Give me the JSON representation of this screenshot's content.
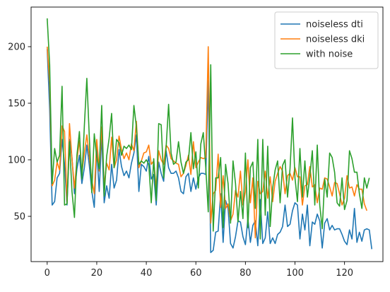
{
  "chart_data": {
    "type": "line",
    "title": "",
    "xlabel": "",
    "ylabel": "",
    "xlim": [
      -6.5,
      135.5
    ],
    "ylim": [
      10,
      235
    ],
    "x_ticks": [
      0,
      20,
      40,
      60,
      80,
      100,
      120
    ],
    "y_ticks": [
      50,
      100,
      150,
      200
    ],
    "grid": false,
    "legend_position": "top-right",
    "series": [
      {
        "name": "noiseless dti",
        "color": "#1f77b4",
        "values": [
          198,
          145,
          60,
          63,
          84,
          88,
          118,
          96,
          60,
          118,
          102,
          70,
          92,
          104,
          79,
          93,
          113,
          95,
          72,
          58,
          110,
          72,
          122,
          62,
          77,
          66,
          96,
          75,
          82,
          109,
          94,
          86,
          90,
          84,
          97,
          106,
          122,
          72,
          96,
          94,
          90,
          103,
          83,
          87,
          60,
          98,
          88,
          81,
          108,
          93,
          88,
          88,
          90,
          84,
          72,
          70,
          85,
          88,
          72,
          84,
          74,
          84,
          88,
          88,
          87,
          170,
          18,
          20,
          36,
          37,
          70,
          27,
          64,
          57,
          26,
          22,
          32,
          46,
          45,
          32,
          25,
          48,
          27,
          42,
          46,
          24,
          65,
          26,
          31,
          54,
          26,
          31,
          26,
          34,
          36,
          41,
          60,
          41,
          43,
          55,
          62,
          60,
          30,
          52,
          38,
          60,
          24,
          45,
          43,
          52,
          46,
          22,
          44,
          48,
          38,
          42,
          38,
          39,
          39,
          34,
          28,
          25,
          38,
          30,
          57,
          27,
          36,
          28,
          38,
          39,
          38,
          21
        ]
      },
      {
        "name": "noiseless dki",
        "color": "#ff7f0e",
        "values": [
          200,
          168,
          77,
          82,
          98,
          91,
          130,
          125,
          62,
          132,
          101,
          75,
          100,
          117,
          88,
          106,
          122,
          103,
          82,
          70,
          118,
          90,
          129,
          77,
          97,
          91,
          120,
          93,
          100,
          121,
          109,
          101,
          106,
          100,
          114,
          108,
          134,
          93,
          99,
          106,
          107,
          113,
          96,
          99,
          75,
          108,
          100,
          96,
          113,
          110,
          101,
          99,
          97,
          96,
          85,
          88,
          95,
          104,
          87,
          116,
          93,
          98,
          102,
          101,
          102,
          200,
          44,
          70,
          73,
          105,
          58,
          86,
          57,
          61,
          46,
          52,
          73,
          67,
          90,
          60,
          72,
          100,
          62,
          84,
          31,
          81,
          70,
          72,
          90,
          66,
          85,
          63,
          81,
          88,
          94,
          90,
          70,
          86,
          88,
          82,
          93,
          85,
          85,
          60,
          77,
          78,
          94,
          76,
          78,
          62,
          75,
          74,
          84,
          83,
          76,
          68,
          80,
          79,
          70,
          60,
          66,
          86,
          75,
          76,
          68,
          78,
          74,
          74,
          61,
          55
        ]
      },
      {
        "name": "with noise",
        "color": "#2ca02c",
        "values": [
          225,
          184,
          79,
          110,
          98,
          104,
          165,
          60,
          61,
          116,
          72,
          49,
          104,
          125,
          83,
          130,
          172,
          120,
          71,
          123,
          102,
          92,
          148,
          68,
          103,
          119,
          141,
          93,
          118,
          115,
          104,
          112,
          110,
          113,
          109,
          148,
          129,
          96,
          99,
          97,
          100,
          96,
          62,
          101,
          64,
          132,
          131,
          84,
          111,
          149,
          106,
          96,
          98,
          116,
          98,
          88,
          98,
          100,
          124,
          92,
          107,
          75,
          114,
          124,
          93,
          54,
          184,
          37,
          84,
          84,
          102,
          40,
          96,
          79,
          44,
          99,
          79,
          45,
          72,
          48,
          106,
          40,
          93,
          98,
          57,
          118,
          30,
          118,
          51,
          112,
          41,
          75,
          91,
          99,
          62,
          95,
          100,
          67,
          92,
          137,
          84,
          63,
          110,
          67,
          99,
          67,
          85,
          108,
          60,
          113,
          60,
          39,
          83,
          67,
          106,
          102,
          89,
          62,
          59,
          84,
          56,
          64,
          108,
          101,
          89,
          89,
          70,
          57,
          84,
          75,
          84
        ]
      }
    ]
  }
}
